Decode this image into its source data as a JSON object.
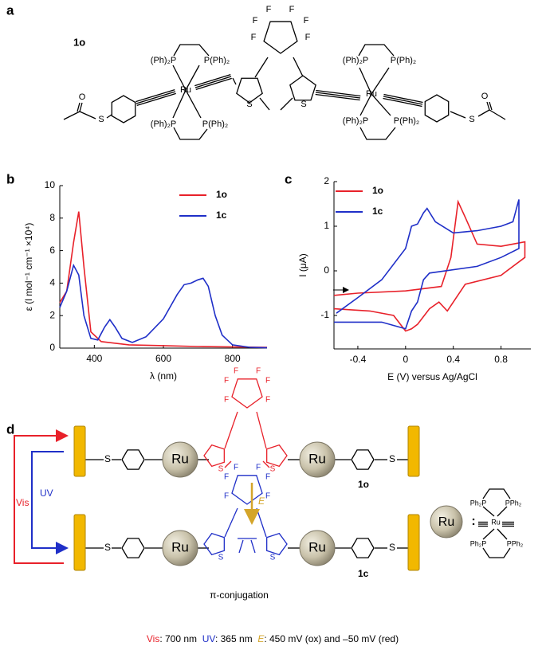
{
  "panel_labels": [
    "a",
    "b",
    "c",
    "d"
  ],
  "structure_1o": {
    "label": "1o",
    "atoms": [
      "F",
      "F",
      "F",
      "F",
      "F",
      "F",
      "S",
      "S",
      "Ru",
      "Ru",
      "(Ph)₂P",
      "P(Ph)₂",
      "(Ph)₂P",
      "P(Ph)₂",
      "(Ph)₂P",
      "P(Ph)₂",
      "(Ph)₂P",
      "P(Ph)₂",
      "O",
      "S",
      "O",
      "S"
    ]
  },
  "chart_data": [
    {
      "type": "line",
      "x_label": "λ (nm)",
      "y_label": "ε (l mol⁻¹ cm⁻¹ ×10⁴)",
      "xlim": [
        300,
        900
      ],
      "ylim": [
        0,
        10
      ],
      "xticks": [
        400,
        600,
        800
      ],
      "yticks": [
        0,
        2,
        4,
        6,
        8,
        10
      ],
      "legend": "upper right",
      "series": [
        {
          "name": "1o",
          "color": "#e8212a",
          "x": [
            300,
            320,
            340,
            355,
            370,
            390,
            420,
            500,
            600,
            700,
            900
          ],
          "values": [
            2.8,
            3.5,
            6.5,
            8.4,
            5,
            1,
            0.4,
            0.2,
            0.15,
            0.1,
            0.05
          ]
        },
        {
          "name": "1c",
          "color": "#1f2fc8",
          "x": [
            300,
            320,
            340,
            355,
            370,
            390,
            410,
            430,
            445,
            460,
            480,
            510,
            550,
            600,
            640,
            660,
            680,
            700,
            715,
            730,
            750,
            770,
            800,
            850,
            900
          ],
          "values": [
            2.5,
            3.5,
            5.1,
            4.5,
            2,
            0.6,
            0.5,
            1.3,
            1.75,
            1.3,
            0.6,
            0.35,
            0.7,
            1.8,
            3.3,
            3.9,
            4,
            4.2,
            4.3,
            3.8,
            2,
            0.8,
            0.2,
            0.05,
            0.02
          ]
        }
      ]
    },
    {
      "type": "line",
      "x_label": "E (V) versus  Ag/AgCl",
      "y_label": "I (μA)",
      "xlim": [
        -0.6,
        1.05
      ],
      "ylim": [
        -1.75,
        2
      ],
      "xticks": [
        -0.4,
        0,
        0.4,
        0.8
      ],
      "yticks": [
        -1,
        0,
        1,
        2
      ],
      "legend": "upper left",
      "series": [
        {
          "name": "1o",
          "color": "#e8212a",
          "x": [
            -0.6,
            -0.4,
            0,
            0.3,
            0.38,
            0.44,
            0.5,
            0.6,
            0.8,
            1.0,
            1.0,
            0.8,
            0.5,
            0.35,
            0.28,
            0.2,
            0.1,
            0.05,
            0,
            -0.1,
            -0.3,
            -0.6
          ],
          "values": [
            -0.55,
            -0.5,
            -0.45,
            -0.35,
            0.3,
            1.55,
            1.2,
            0.6,
            0.55,
            0.65,
            0.3,
            -0.1,
            -0.3,
            -0.9,
            -0.7,
            -0.85,
            -1.2,
            -1.3,
            -1.35,
            -1,
            -0.9,
            -0.85
          ]
        },
        {
          "name": "1c",
          "color": "#1f2fc8",
          "x": [
            -0.58,
            -0.4,
            -0.2,
            0,
            0.05,
            0.1,
            0.15,
            0.18,
            0.25,
            0.4,
            0.6,
            0.8,
            0.9,
            0.95,
            0.95,
            0.8,
            0.6,
            0.2,
            0.15,
            0.1,
            0.05,
            0,
            -0.2,
            -0.6
          ],
          "values": [
            -0.95,
            -0.6,
            -0.2,
            0.5,
            1,
            1.05,
            1.3,
            1.4,
            1.1,
            0.85,
            0.9,
            1,
            1.1,
            1.6,
            0.5,
            0.3,
            0.1,
            -0.05,
            -0.2,
            -0.7,
            -0.9,
            -1.3,
            -1.15,
            -1.15
          ]
        }
      ]
    }
  ],
  "scheme": {
    "top": {
      "label": "1o",
      "atoms": [
        "S",
        "Ru",
        "F",
        "F",
        "F",
        "F",
        "F",
        "F",
        "S",
        "S",
        "Ru",
        "S"
      ]
    },
    "bottom": {
      "label": "1c",
      "atoms": [
        "S",
        "Ru",
        "F",
        "F",
        "F",
        "F",
        "F",
        "F",
        "S",
        "S",
        "Ru",
        "S"
      ]
    },
    "arrow_label": "E",
    "vis": "Vis",
    "uv": "UV",
    "conjugation": "π-conjugation",
    "ru_key": {
      "ball": "Ru",
      "colon": ":",
      "atoms": [
        "Ph₂P",
        "PPh₂",
        "Ru",
        "Ph₂P",
        "PPh₂"
      ]
    }
  },
  "caption": [
    "Vis",
    ": 700 nm  ",
    "UV",
    ": 365 nm  ",
    "E",
    ": 450 mV (ox) and –50 mV (red)"
  ]
}
